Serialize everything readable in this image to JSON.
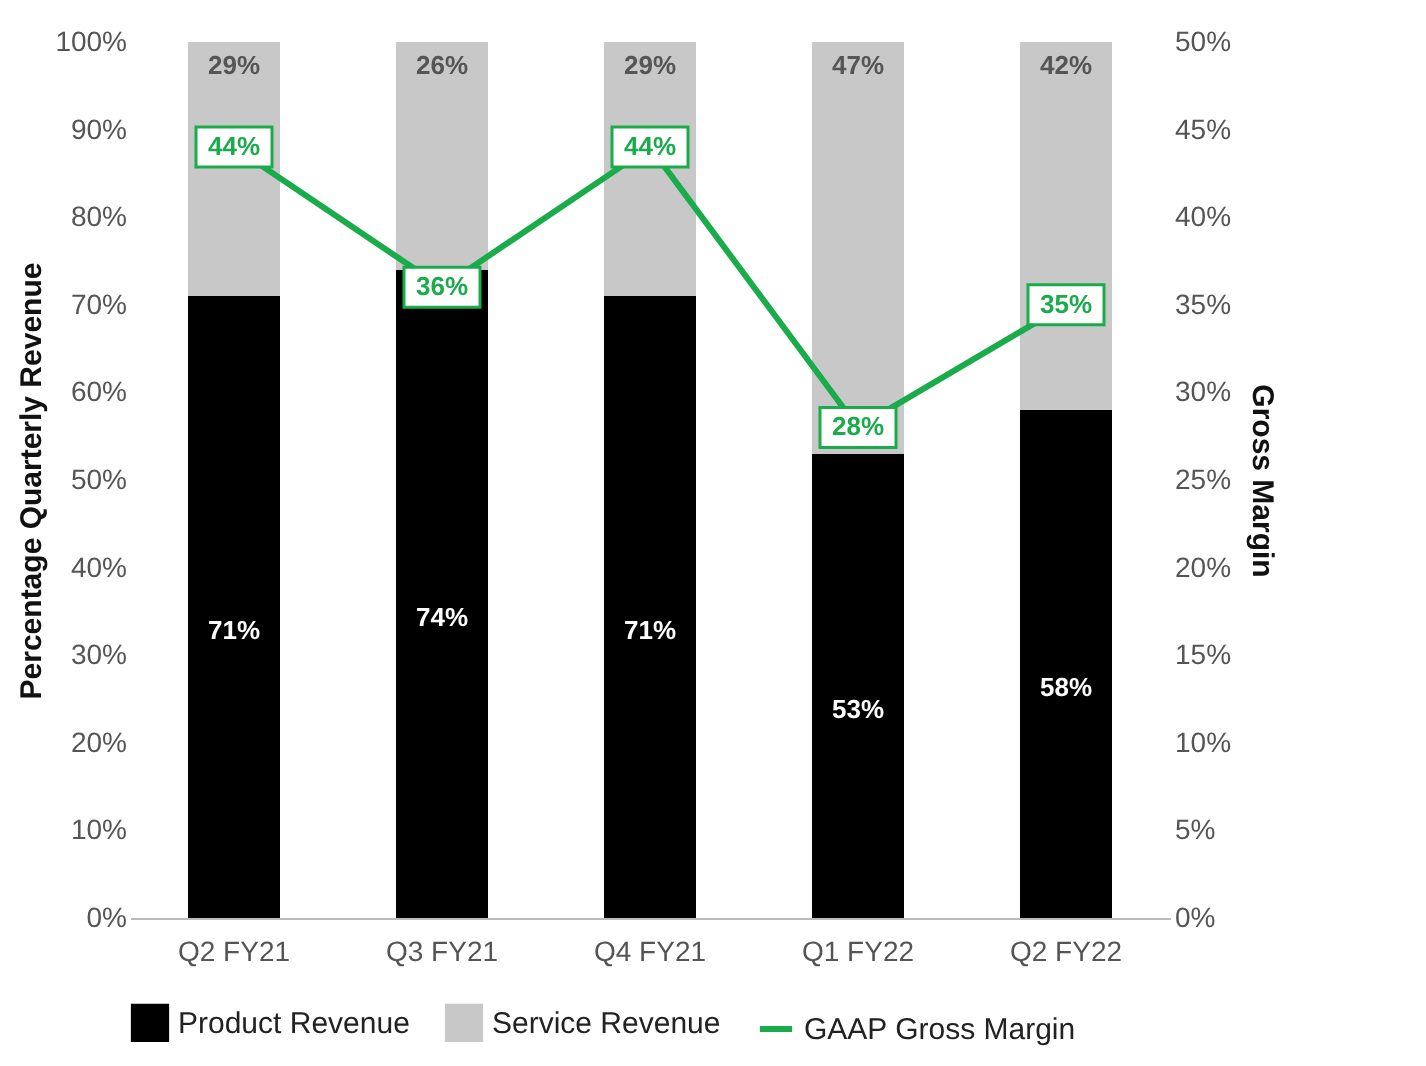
{
  "chart_data": {
    "type": "bar",
    "stacked": true,
    "categories": [
      "Q2 FY21",
      "Q3 FY21",
      "Q4 FY21",
      "Q1 FY22",
      "Q2 FY22"
    ],
    "series": [
      {
        "name": "Product Revenue",
        "color": "#000000",
        "values": [
          71,
          74,
          71,
          53,
          58
        ],
        "value_labels": [
          "71%",
          "74%",
          "71%",
          "53%",
          "58%"
        ]
      },
      {
        "name": "Service Revenue",
        "color": "#c8c8c8",
        "values": [
          29,
          26,
          29,
          47,
          42
        ],
        "value_labels": [
          "29%",
          "26%",
          "29%",
          "47%",
          "42%"
        ]
      },
      {
        "name": "GAAP Gross Margin",
        "type": "line",
        "axis": "y2",
        "marker": "square",
        "color": "#1aab4b",
        "values": [
          44,
          36,
          44,
          28,
          35
        ],
        "value_labels": [
          "44%",
          "36%",
          "44%",
          "28%",
          "35%"
        ]
      }
    ],
    "ylabel": "Percentage Quarterly  Revenue",
    "y2label": "Gross Margin",
    "ylim": [
      0,
      100
    ],
    "yticks": [
      {
        "value": 0,
        "label": "0%"
      },
      {
        "value": 10,
        "label": "10%"
      },
      {
        "value": 20,
        "label": "20%"
      },
      {
        "value": 30,
        "label": "30%"
      },
      {
        "value": 40,
        "label": "40%"
      },
      {
        "value": 50,
        "label": "50%"
      },
      {
        "value": 60,
        "label": "60%"
      },
      {
        "value": 70,
        "label": "70%"
      },
      {
        "value": 80,
        "label": "80%"
      },
      {
        "value": 90,
        "label": "90%"
      },
      {
        "value": 100,
        "label": "100%"
      }
    ],
    "y2lim": [
      0,
      50
    ],
    "y2ticks": [
      {
        "value": 0,
        "label": "0%"
      },
      {
        "value": 5,
        "label": "5%"
      },
      {
        "value": 10,
        "label": "10%"
      },
      {
        "value": 15,
        "label": "15%"
      },
      {
        "value": 20,
        "label": "20%"
      },
      {
        "value": 25,
        "label": "25%"
      },
      {
        "value": 30,
        "label": "30%"
      },
      {
        "value": 35,
        "label": "35%"
      },
      {
        "value": 40,
        "label": "40%"
      },
      {
        "value": 45,
        "label": "45%"
      },
      {
        "value": 50,
        "label": "50%"
      }
    ],
    "legend": "bottom",
    "grid": false,
    "line_style": "solid"
  }
}
